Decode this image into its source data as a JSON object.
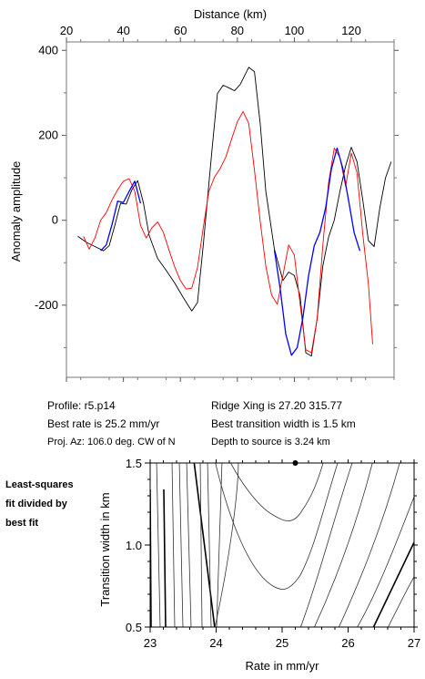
{
  "top_chart": {
    "xlabel": "Distance (km)",
    "ylabel": "Anomaly amplitude",
    "x_ticks": [
      20,
      40,
      60,
      80,
      100,
      120
    ],
    "y_ticks": [
      400,
      200,
      0,
      -200
    ],
    "xlim": [
      20,
      135
    ],
    "ylim": [
      -370,
      420
    ],
    "colors": {
      "observed": "#000000",
      "model": "#ff0000",
      "fit_window": "#0000ff"
    }
  },
  "info": {
    "profile": "Profile: r5.p14",
    "best_rate": "Best rate is 25.2 mm/yr",
    "proj_az": "Proj. Az: 106.0 deg. CW of N",
    "ridge_xing": "Ridge Xing is 27.20 315.77",
    "best_width": "Best transition width is 1.5 km",
    "depth": "Depth to source is   3.24 km"
  },
  "side_note": [
    "Least-squares",
    "fit divided by",
    "best fit"
  ],
  "bottom_chart": {
    "xlabel": "Rate in mm/yr",
    "ylabel": "Transition width in km",
    "x_ticks": [
      "23",
      "24",
      "25",
      "26",
      "27"
    ],
    "y_ticks": [
      "1.5",
      "1.0",
      "0.5"
    ],
    "xlim": [
      23,
      27
    ],
    "ylim": [
      0.5,
      1.5
    ],
    "best_point": {
      "x": 25.2,
      "y": 1.5
    }
  },
  "chart_data": [
    {
      "type": "line",
      "title": "",
      "xlabel": "Distance (km)",
      "ylabel": "Anomaly amplitude",
      "xlim": [
        20,
        135
      ],
      "ylim": [
        -370,
        420
      ],
      "series": [
        {
          "color": "#000000",
          "points": [
            [
              24,
              -38
            ],
            [
              27,
              -52
            ],
            [
              30,
              -62
            ],
            [
              33,
              -72
            ],
            [
              35,
              -60
            ],
            [
              37,
              -12
            ],
            [
              39,
              40
            ],
            [
              41,
              38
            ],
            [
              43,
              72
            ],
            [
              45,
              93
            ],
            [
              47,
              42
            ],
            [
              49,
              -35
            ],
            [
              52,
              -90
            ],
            [
              55,
              -118
            ],
            [
              58,
              -148
            ],
            [
              61,
              -182
            ],
            [
              64,
              -214
            ],
            [
              66,
              -194
            ],
            [
              68,
              -60
            ],
            [
              71,
              160
            ],
            [
              73,
              298
            ],
            [
              75,
              318
            ],
            [
              77,
              312
            ],
            [
              79,
              305
            ],
            [
              81,
              320
            ],
            [
              84,
              360
            ],
            [
              86,
              350
            ],
            [
              88,
              228
            ],
            [
              90,
              68
            ],
            [
              93,
              -68
            ],
            [
              96,
              -142
            ],
            [
              98,
              -122
            ],
            [
              100,
              -130
            ],
            [
              102,
              -178
            ],
            [
              104,
              -312
            ],
            [
              106,
              -320
            ],
            [
              108,
              -232
            ],
            [
              110,
              -108
            ],
            [
              112,
              -40
            ],
            [
              114,
              0
            ],
            [
              116,
              68
            ],
            [
              118,
              128
            ],
            [
              120,
              172
            ],
            [
              122,
              138
            ],
            [
              124,
              48
            ],
            [
              126,
              -48
            ],
            [
              128,
              -62
            ],
            [
              130,
              28
            ],
            [
              132,
              100
            ],
            [
              134,
              138
            ]
          ]
        },
        {
          "color": "#ff0000",
          "points": [
            [
              26,
              -38
            ],
            [
              28,
              -68
            ],
            [
              30,
              -42
            ],
            [
              32,
              0
            ],
            [
              34,
              18
            ],
            [
              36,
              48
            ],
            [
              38,
              72
            ],
            [
              40,
              92
            ],
            [
              42,
              98
            ],
            [
              44,
              68
            ],
            [
              46,
              -12
            ],
            [
              48,
              -42
            ],
            [
              50,
              -18
            ],
            [
              52,
              -4
            ],
            [
              54,
              -28
            ],
            [
              56,
              -70
            ],
            [
              58,
              -110
            ],
            [
              60,
              -142
            ],
            [
              62,
              -162
            ],
            [
              64,
              -160
            ],
            [
              66,
              -112
            ],
            [
              68,
              -18
            ],
            [
              70,
              68
            ],
            [
              72,
              102
            ],
            [
              74,
              122
            ],
            [
              76,
              150
            ],
            [
              78,
              192
            ],
            [
              80,
              232
            ],
            [
              82,
              256
            ],
            [
              84,
              228
            ],
            [
              86,
              118
            ],
            [
              88,
              -2
            ],
            [
              90,
              -108
            ],
            [
              92,
              -176
            ],
            [
              94,
              -198
            ],
            [
              96,
              -130
            ],
            [
              98,
              -58
            ],
            [
              100,
              -82
            ],
            [
              102,
              -196
            ],
            [
              104,
              -305
            ],
            [
              106,
              -312
            ],
            [
              108,
              -232
            ],
            [
              110,
              -60
            ],
            [
              112,
              88
            ],
            [
              114,
              170
            ],
            [
              116,
              148
            ],
            [
              118,
              80
            ],
            [
              120,
              158
            ],
            [
              122,
              112
            ],
            [
              124,
              -32
            ],
            [
              126,
              -150
            ],
            [
              127.5,
              -292
            ]
          ]
        },
        {
          "color": "#0000ff",
          "points": [
            [
              32,
              -72
            ],
            [
              34,
              -58
            ],
            [
              36,
              -10
            ],
            [
              38,
              45
            ],
            [
              40,
              42
            ],
            [
              42,
              68
            ],
            [
              44,
              92
            ],
            [
              46,
              40
            ],
            [
              93,
              -70
            ],
            [
              95,
              -160
            ],
            [
              97,
              -268
            ],
            [
              99,
              -318
            ],
            [
              101,
              -300
            ],
            [
              103,
              -230
            ],
            [
              105,
              -130
            ],
            [
              107,
              -60
            ],
            [
              109,
              -28
            ],
            [
              111,
              30
            ],
            [
              113,
              120
            ],
            [
              115,
              170
            ],
            [
              117,
              122
            ],
            [
              119,
              48
            ],
            [
              121,
              -30
            ],
            [
              123,
              -72
            ]
          ]
        }
      ]
    },
    {
      "type": "contour",
      "title": "",
      "xlabel": "Rate in mm/yr",
      "ylabel": "Transition width in km",
      "xlim": [
        23,
        27
      ],
      "ylim": [
        0.5,
        1.5
      ],
      "best_point": [
        25.2,
        1.5
      ]
    }
  ]
}
